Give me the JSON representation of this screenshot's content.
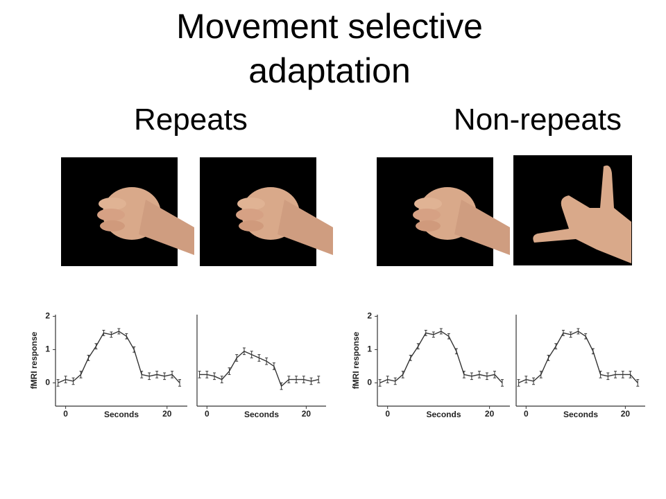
{
  "title": "Movement selective adaptation",
  "headings": [
    "Repeats",
    "Non-repeats"
  ],
  "chart_data": [
    {
      "type": "line",
      "ylabel": "fMRI response",
      "xlabel": "Seconds",
      "x": [
        -1.5,
        0,
        1.5,
        3,
        4.5,
        6,
        7.5,
        9,
        10.5,
        12,
        13.5,
        15,
        16.5,
        18,
        19.5,
        21,
        22.5
      ],
      "values": [
        0.0,
        0.1,
        0.05,
        0.25,
        0.75,
        1.1,
        1.5,
        1.45,
        1.55,
        1.4,
        1.0,
        0.25,
        0.2,
        0.25,
        0.2,
        0.25,
        0.0
      ],
      "errors": [
        0.1,
        0.1,
        0.1,
        0.1,
        0.08,
        0.08,
        0.08,
        0.08,
        0.08,
        0.08,
        0.08,
        0.1,
        0.1,
        0.1,
        0.1,
        0.1,
        0.1
      ],
      "xlim": [
        -2,
        24
      ],
      "ylim": [
        -0.7,
        2.05
      ],
      "xticks": [
        0,
        20
      ],
      "yticks": [
        0,
        1,
        2
      ]
    },
    {
      "type": "line",
      "xlabel": "Seconds",
      "x": [
        -1.5,
        0,
        1.5,
        3,
        4.5,
        6,
        7.5,
        9,
        10.5,
        12,
        13.5,
        15,
        16.5,
        18,
        19.5,
        21,
        22.5
      ],
      "values": [
        0.25,
        0.25,
        0.2,
        0.1,
        0.35,
        0.75,
        0.95,
        0.85,
        0.75,
        0.65,
        0.5,
        -0.1,
        0.1,
        0.1,
        0.1,
        0.05,
        0.1
      ],
      "errors": [
        0.1,
        0.1,
        0.1,
        0.1,
        0.1,
        0.1,
        0.1,
        0.1,
        0.1,
        0.1,
        0.1,
        0.1,
        0.1,
        0.1,
        0.1,
        0.1,
        0.1
      ],
      "xlim": [
        -2,
        24
      ],
      "ylim": [
        -0.7,
        2.05
      ],
      "xticks": [
        0,
        20
      ]
    },
    {
      "type": "line",
      "ylabel": "fMRI response",
      "xlabel": "Seconds",
      "x": [
        -1.5,
        0,
        1.5,
        3,
        4.5,
        6,
        7.5,
        9,
        10.5,
        12,
        13.5,
        15,
        16.5,
        18,
        19.5,
        21,
        22.5
      ],
      "values": [
        0.0,
        0.1,
        0.05,
        0.25,
        0.75,
        1.1,
        1.5,
        1.45,
        1.55,
        1.4,
        0.95,
        0.25,
        0.2,
        0.25,
        0.2,
        0.25,
        0.0
      ],
      "errors": [
        0.1,
        0.1,
        0.1,
        0.1,
        0.08,
        0.08,
        0.08,
        0.08,
        0.08,
        0.08,
        0.08,
        0.1,
        0.1,
        0.1,
        0.1,
        0.1,
        0.1
      ],
      "xlim": [
        -2,
        24
      ],
      "ylim": [
        -0.7,
        2.05
      ],
      "xticks": [
        0,
        20
      ],
      "yticks": [
        0,
        1,
        2
      ]
    },
    {
      "type": "line",
      "xlabel": "Seconds",
      "x": [
        -1.5,
        0,
        1.5,
        3,
        4.5,
        6,
        7.5,
        9,
        10.5,
        12,
        13.5,
        15,
        16.5,
        18,
        19.5,
        21,
        22.5
      ],
      "values": [
        0.0,
        0.1,
        0.05,
        0.25,
        0.75,
        1.1,
        1.5,
        1.45,
        1.55,
        1.4,
        0.95,
        0.25,
        0.2,
        0.25,
        0.25,
        0.25,
        0.0
      ],
      "errors": [
        0.1,
        0.1,
        0.1,
        0.1,
        0.08,
        0.08,
        0.08,
        0.08,
        0.08,
        0.08,
        0.08,
        0.1,
        0.1,
        0.1,
        0.1,
        0.1,
        0.1
      ],
      "xlim": [
        -2,
        24
      ],
      "ylim": [
        -0.7,
        2.05
      ],
      "xticks": [
        0,
        20
      ]
    }
  ]
}
